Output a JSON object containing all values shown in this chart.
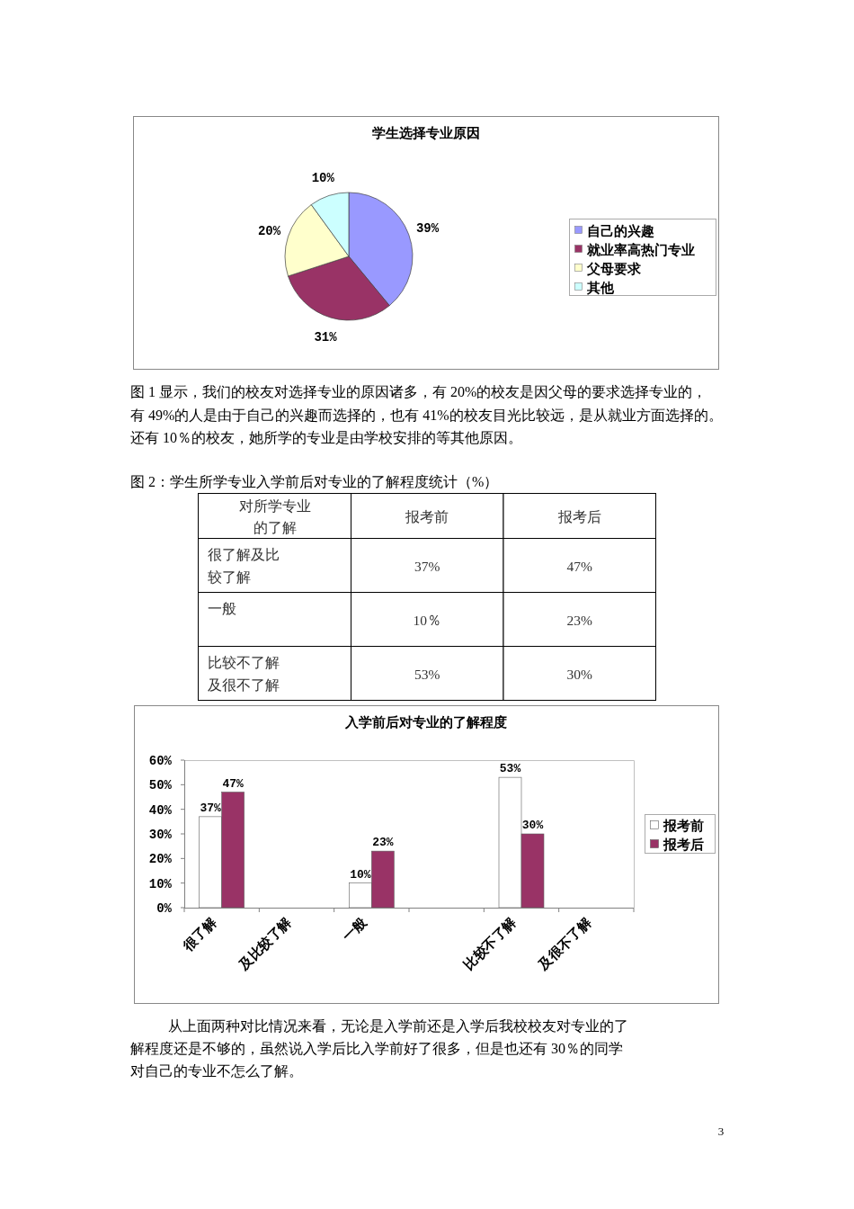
{
  "chart_data": [
    {
      "type": "pie",
      "title": "学生选择专业原因",
      "categories": [
        "自己的兴趣",
        "就业率高热门专业",
        "父母要求",
        "其他"
      ],
      "values": [
        39,
        31,
        20,
        10
      ],
      "colors": [
        "#9999ff",
        "#993366",
        "#ffffcc",
        "#ccffff"
      ],
      "value_labels": [
        "39%",
        "31%",
        "20%",
        "10%"
      ],
      "legend": "right",
      "annotations": [
        "图 1 显示，我们的校友对选择专业的原因诸多，有 20%的校友是因父母的要求选择专业的，有 49%的人是由于自己的兴趣而选择的，也有 41%的校友目光比较远，是从就业方面选择的。还有 10％的校友，她所学的专业是由学校安排的等其他原因。"
      ]
    },
    {
      "type": "other",
      "title": "图 2：学生所学专业入学前后对专业的了解程度统计（%）",
      "annotations": [
        "对所学专业的了解",
        "报考前",
        "报考后",
        "很了解及比较了解",
        "37%",
        "47%",
        "一般",
        "10％",
        "23%",
        "比较不了解及很不了解",
        "53%",
        "30%"
      ]
    },
    {
      "type": "bar",
      "title": "入学前后对专业的了解程度",
      "categories": [
        "很了解",
        "及比较了解",
        "一般",
        null,
        "比较不了解",
        "及很不了解"
      ],
      "series": [
        {
          "name": "报考前",
          "color": "#ffffff",
          "values": [
            37,
            null,
            10,
            null,
            53,
            null
          ],
          "value_labels": [
            "37%",
            null,
            "10%",
            null,
            "53%",
            null
          ]
        },
        {
          "name": "报考后",
          "color": "#993366",
          "values": [
            47,
            null,
            23,
            null,
            30,
            null
          ],
          "value_labels": [
            "47%",
            null,
            "23%",
            null,
            "30%",
            null
          ]
        }
      ],
      "ylim": [
        0,
        60
      ],
      "yticks": [
        {
          "value": 0,
          "label": "0%"
        },
        {
          "value": 10,
          "label": "10%"
        },
        {
          "value": 20,
          "label": "20%"
        },
        {
          "value": 30,
          "label": "30%"
        },
        {
          "value": 40,
          "label": "40%"
        },
        {
          "value": 50,
          "label": "50%"
        },
        {
          "value": 60,
          "label": "60%"
        }
      ],
      "legend": "right",
      "annotations": [
        "从上面两种对比情况来看，无论是入学前还是入学后我校校友对专业的了解程度还是不够的，虽然说入学后比入学前好了很多，但是也还有 30％的同学对自己的专业不怎么了解。",
        "3"
      ]
    }
  ]
}
